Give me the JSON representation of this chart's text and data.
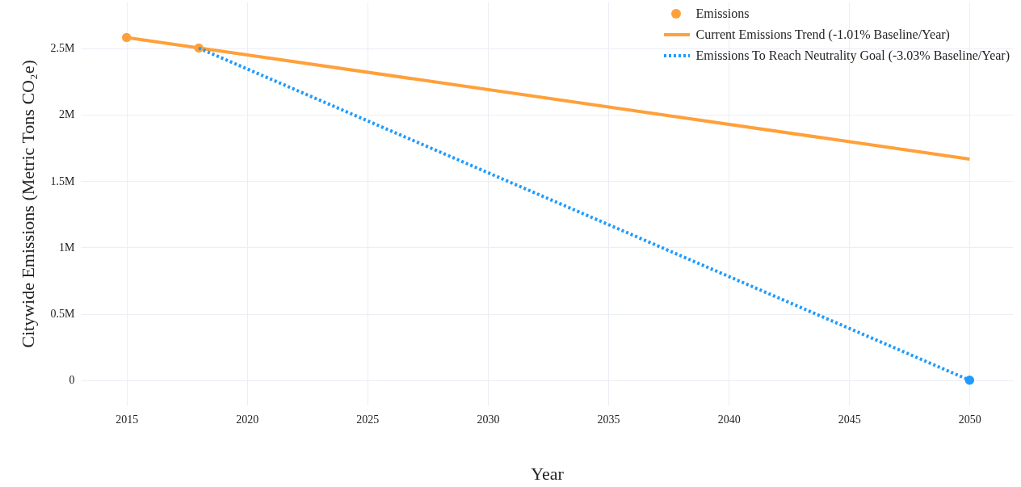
{
  "chart_data": {
    "type": "line",
    "xlabel": "Year",
    "ylabel": "Citywide Emissions (Metric Tons CO₂e)",
    "xlim": [
      2013.1,
      2051.8
    ],
    "xticks": [
      2015,
      2020,
      2025,
      2030,
      2035,
      2040,
      2045,
      2050
    ],
    "ylim": [
      -190000,
      2850000
    ],
    "yticks": [
      {
        "value": 0,
        "label": "0"
      },
      {
        "value": 500000,
        "label": "0.5M"
      },
      {
        "value": 1000000,
        "label": "1M"
      },
      {
        "value": 1500000,
        "label": "1.5M"
      },
      {
        "value": 2000000,
        "label": "2M"
      },
      {
        "value": 2500000,
        "label": "2.5M"
      }
    ],
    "grid": true,
    "legend": "top right",
    "series": [
      {
        "name": "Emissions",
        "type": "scatter",
        "marker": "circle",
        "color": "#ffa03a",
        "x": [
          2015,
          2018
        ],
        "values": [
          2580000,
          2500000
        ]
      },
      {
        "name": "Current Emissions Trend (-1.01% Baseline/Year)",
        "type": "line",
        "line_style": "solid",
        "color": "#ffa03a",
        "x": [
          2015,
          2050
        ],
        "values": [
          2580000,
          1665000
        ]
      },
      {
        "name": "Emissions To Reach Neutrality Goal (-3.03% Baseline/Year)",
        "type": "line",
        "line_style": "dotted",
        "color": "#1f9bff",
        "x": [
          2018,
          2050
        ],
        "values": [
          2500000,
          0
        ]
      },
      {
        "type": "scatter",
        "marker": "circle",
        "color": "#1f9bff",
        "x": [
          2050
        ],
        "values": [
          0
        ]
      }
    ]
  }
}
